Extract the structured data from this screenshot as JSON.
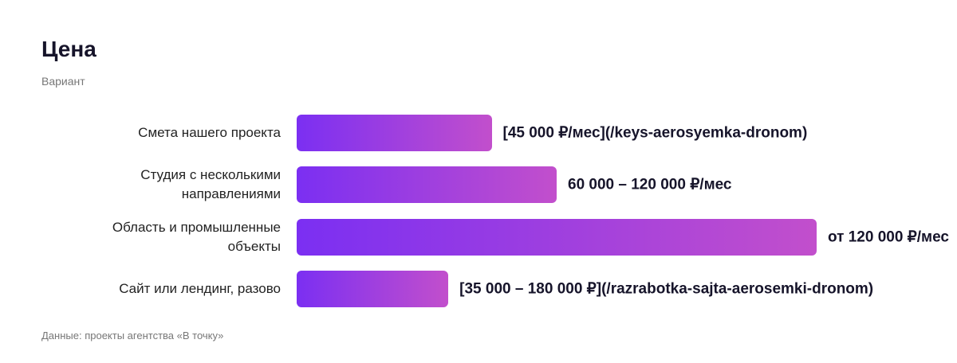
{
  "chart_data": {
    "type": "bar",
    "orientation": "horizontal",
    "title": "Цена",
    "subtitle": "Вариант",
    "categories": [
      "Смета нашего проекта",
      "Студия с несколькими направлениями",
      "Область и промышленные объекты",
      "Сайт или лендинг, разово"
    ],
    "values": [
      45000,
      60000,
      120000,
      35000
    ],
    "value_labels": [
      "[45 000 ₽/мес](/keys-aerosyemka-dronom)",
      "60 000 – 120 000 ₽/мес",
      "от 120 000 ₽/мес",
      "[35 000 – 180 000 ₽](/razrabotka-sajta-aerosemki-dronom)"
    ],
    "gradient": [
      "#7b2ff2",
      "#c24fcc"
    ],
    "source": "Данные: проекты агентства «В точку»"
  }
}
